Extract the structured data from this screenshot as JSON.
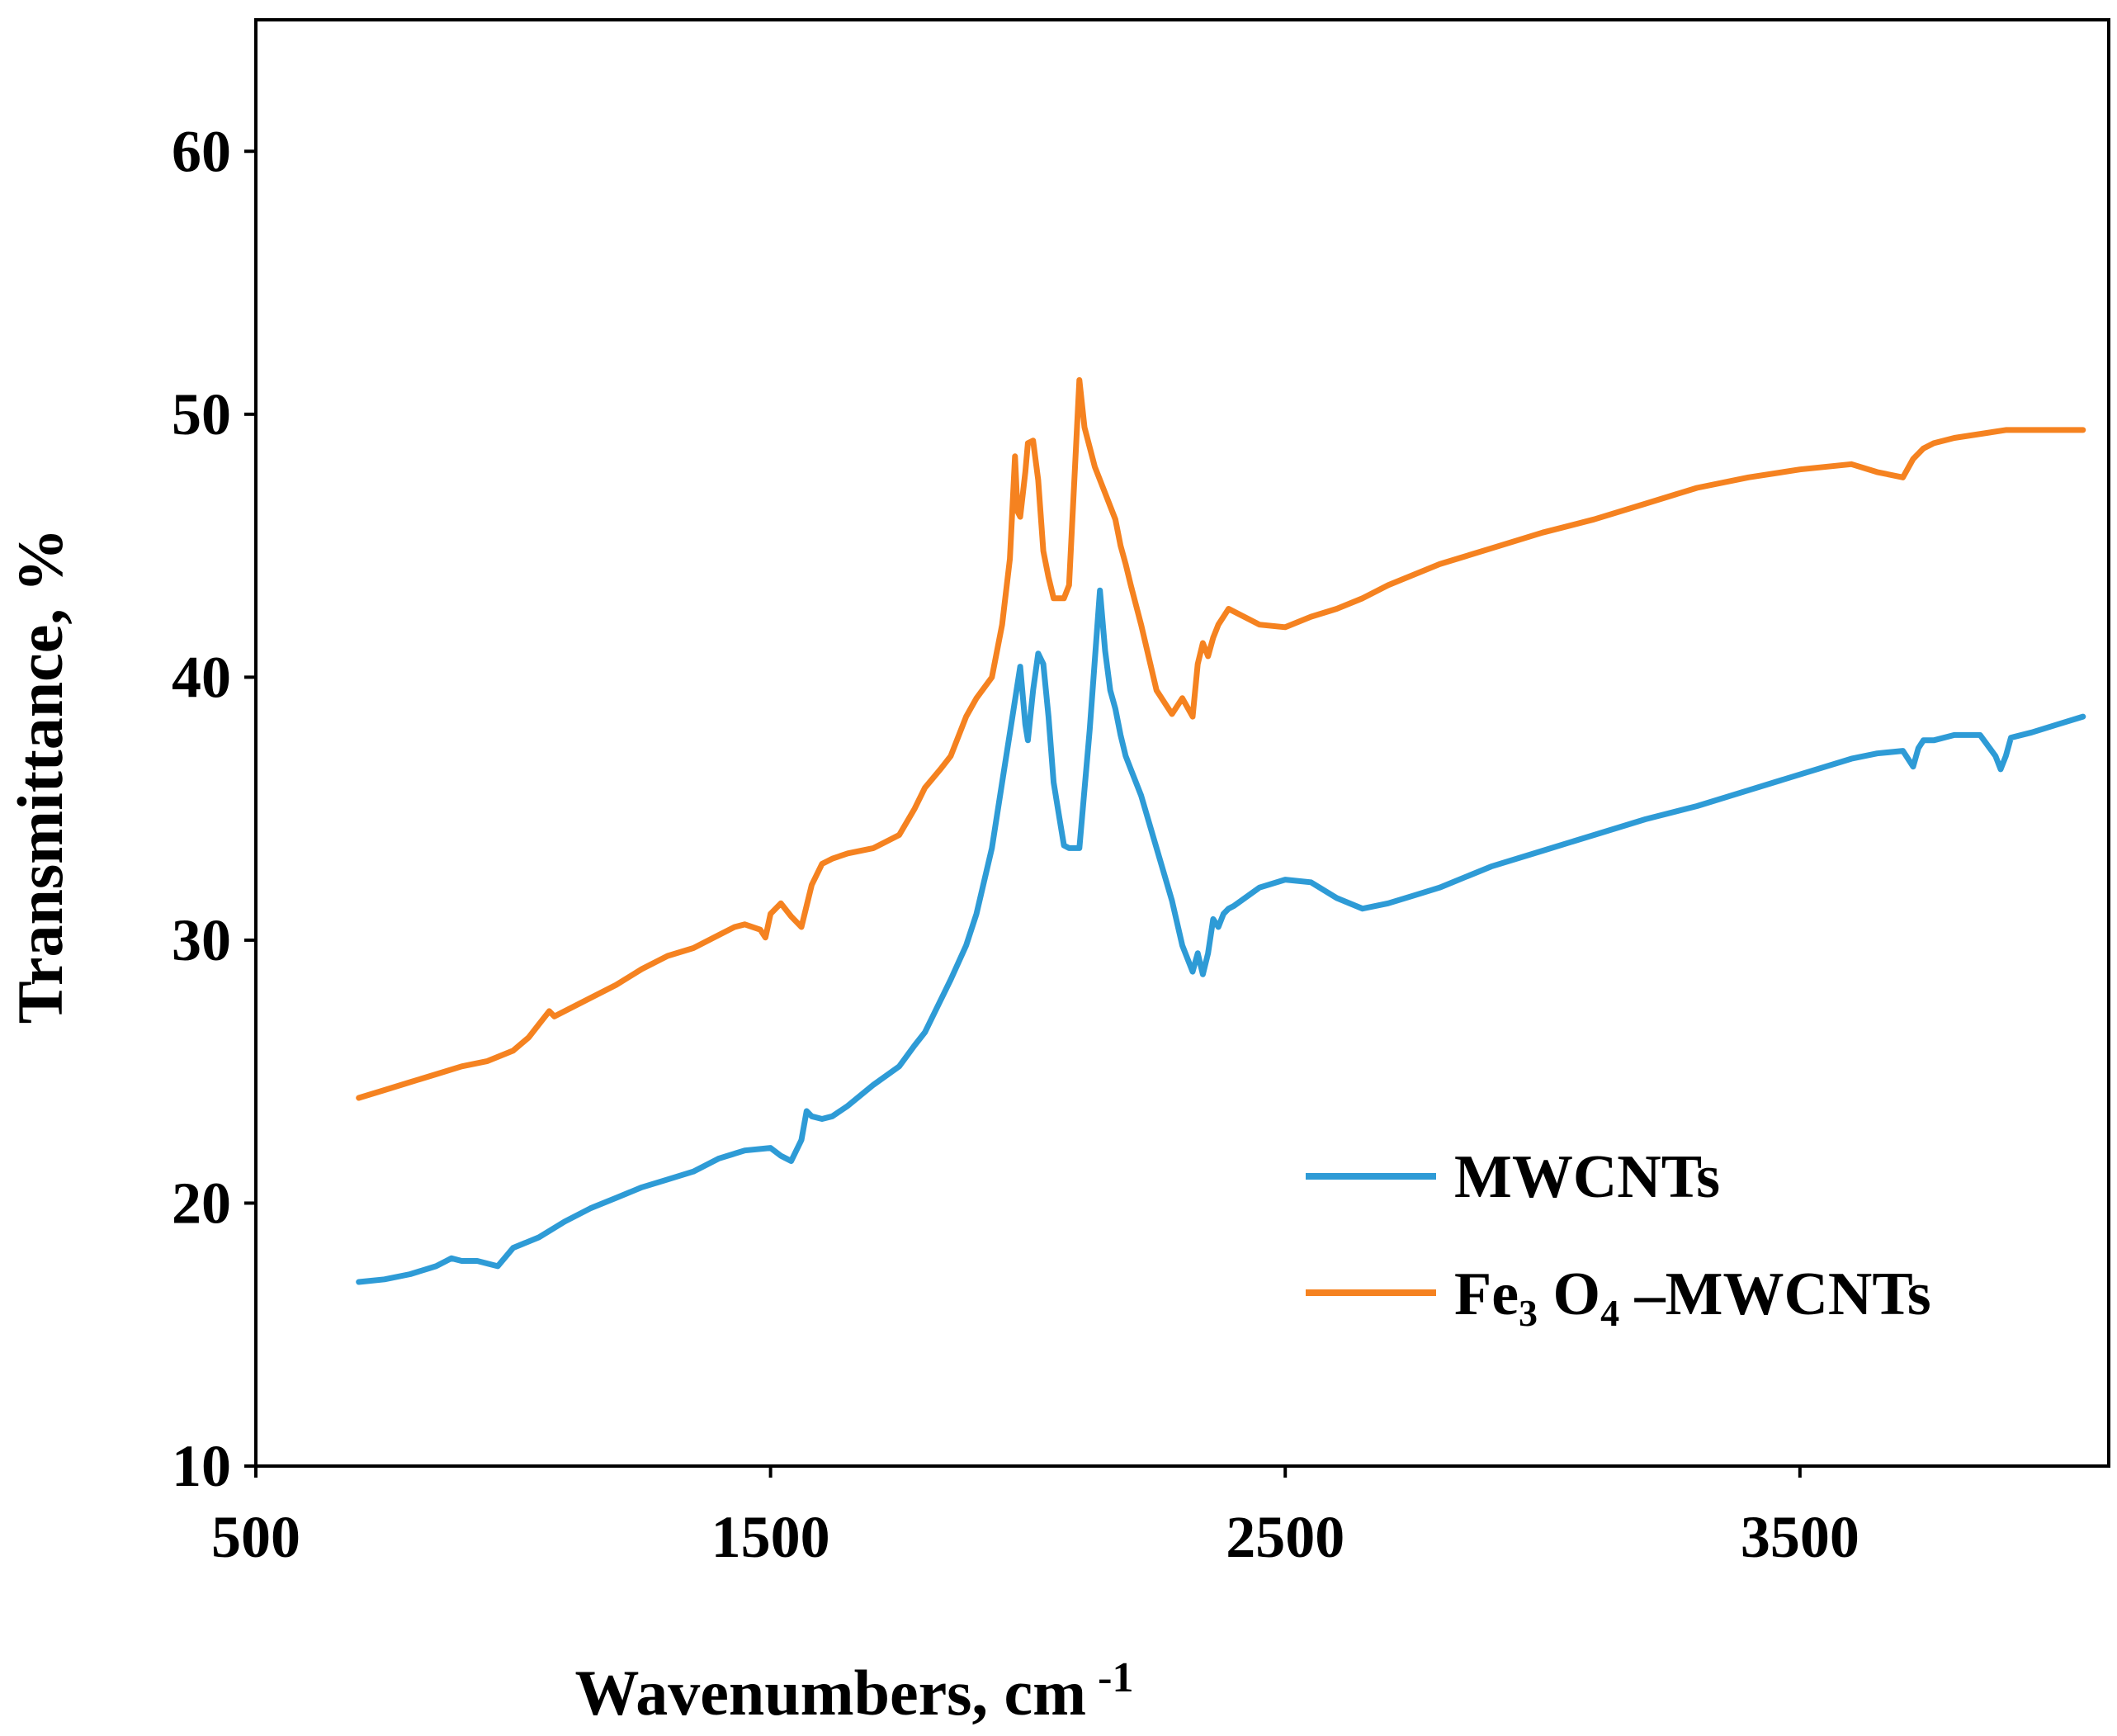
{
  "chart_data": {
    "type": "line",
    "title": "",
    "xlabel": "Wavenumbers, cm",
    "xlabel_sup": "-1",
    "ylabel": "Transmittance, %",
    "xlim": [
      500,
      4100
    ],
    "ylim": [
      10,
      65
    ],
    "xticks": [
      500,
      1500,
      2500,
      3500
    ],
    "yticks": [
      10,
      20,
      30,
      40,
      50,
      60
    ],
    "grid": false,
    "legend_position": "bottom-right",
    "series": [
      {
        "name": "MWCNTs",
        "color": "#2e9bd6",
        "x": [
          700,
          750,
          800,
          850,
          880,
          900,
          930,
          970,
          1000,
          1050,
          1100,
          1150,
          1200,
          1250,
          1300,
          1350,
          1400,
          1450,
          1500,
          1520,
          1540,
          1560,
          1570,
          1580,
          1600,
          1620,
          1650,
          1700,
          1750,
          1780,
          1800,
          1850,
          1880,
          1900,
          1930,
          1950,
          1970,
          1985,
          1995,
          2000,
          2010,
          2020,
          2030,
          2040,
          2050,
          2060,
          2070,
          2080,
          2100,
          2120,
          2140,
          2150,
          2160,
          2170,
          2180,
          2190,
          2200,
          2220,
          2250,
          2280,
          2300,
          2320,
          2330,
          2340,
          2350,
          2360,
          2370,
          2380,
          2390,
          2400,
          2450,
          2500,
          2550,
          2600,
          2650,
          2700,
          2750,
          2800,
          2900,
          3000,
          3100,
          3200,
          3300,
          3400,
          3500,
          3600,
          3650,
          3700,
          3720,
          3730,
          3740,
          3760,
          3800,
          3850,
          3880,
          3890,
          3900,
          3910,
          3950,
          4000,
          4050
        ],
        "values": [
          17.0,
          17.1,
          17.3,
          17.6,
          17.9,
          17.8,
          17.8,
          17.6,
          18.3,
          18.7,
          19.3,
          19.8,
          20.2,
          20.6,
          20.9,
          21.2,
          21.7,
          22.0,
          22.1,
          21.8,
          21.6,
          22.4,
          23.5,
          23.3,
          23.2,
          23.3,
          23.7,
          24.5,
          25.2,
          26.0,
          26.5,
          28.5,
          29.8,
          31.0,
          33.5,
          36.0,
          38.5,
          40.4,
          38.2,
          37.6,
          39.5,
          40.9,
          40.5,
          38.5,
          36.0,
          34.8,
          33.6,
          33.5,
          33.5,
          38.0,
          43.3,
          41.0,
          39.5,
          38.8,
          37.8,
          37.0,
          36.5,
          35.5,
          33.5,
          31.5,
          29.8,
          28.8,
          29.5,
          28.7,
          29.5,
          30.8,
          30.5,
          31.0,
          31.2,
          31.3,
          32.0,
          32.3,
          32.2,
          31.6,
          31.2,
          31.4,
          31.7,
          32.0,
          32.8,
          33.4,
          34.0,
          34.6,
          35.1,
          35.7,
          36.3,
          36.9,
          37.1,
          37.2,
          36.6,
          37.3,
          37.6,
          37.6,
          37.8,
          37.8,
          37.0,
          36.5,
          37.0,
          37.7,
          37.9,
          38.2,
          38.5
        ],
        "legend_label": "MWCNTs"
      },
      {
        "name": "Fe3O4-MWCNTs",
        "color": "#f58220",
        "x": [
          700,
          750,
          800,
          850,
          900,
          950,
          1000,
          1030,
          1050,
          1070,
          1080,
          1100,
          1150,
          1200,
          1250,
          1300,
          1350,
          1400,
          1430,
          1450,
          1480,
          1490,
          1500,
          1520,
          1540,
          1560,
          1580,
          1600,
          1620,
          1650,
          1700,
          1750,
          1780,
          1800,
          1830,
          1850,
          1880,
          1900,
          1930,
          1950,
          1965,
          1975,
          1980,
          1985,
          1995,
          2000,
          2010,
          2020,
          2030,
          2040,
          2050,
          2060,
          2070,
          2080,
          2100,
          2110,
          2130,
          2150,
          2160,
          2170,
          2180,
          2190,
          2200,
          2220,
          2250,
          2280,
          2300,
          2320,
          2330,
          2340,
          2350,
          2360,
          2370,
          2380,
          2390,
          2400,
          2450,
          2500,
          2550,
          2600,
          2650,
          2700,
          2750,
          2800,
          2900,
          3000,
          3100,
          3200,
          3300,
          3400,
          3500,
          3600,
          3650,
          3700,
          3720,
          3730,
          3740,
          3760,
          3800,
          3900,
          3950,
          4000,
          4050
        ],
        "values": [
          24.0,
          24.3,
          24.6,
          24.9,
          25.2,
          25.4,
          25.8,
          26.3,
          26.8,
          27.3,
          27.1,
          27.3,
          27.8,
          28.3,
          28.9,
          29.4,
          29.7,
          30.2,
          30.5,
          30.6,
          30.4,
          30.1,
          31.0,
          31.4,
          30.9,
          30.5,
          32.1,
          32.9,
          33.1,
          33.3,
          33.5,
          34.0,
          35.0,
          35.8,
          36.5,
          37.0,
          38.5,
          39.2,
          40.0,
          42.0,
          44.5,
          48.4,
          46.3,
          46.1,
          47.8,
          48.9,
          49.0,
          47.5,
          44.8,
          43.8,
          43.0,
          43.0,
          43.0,
          43.5,
          51.3,
          49.5,
          48.0,
          47.0,
          46.5,
          46.0,
          45.0,
          44.3,
          43.5,
          42.0,
          39.5,
          38.6,
          39.2,
          38.5,
          40.5,
          41.3,
          40.8,
          41.5,
          42.0,
          42.3,
          42.6,
          42.5,
          42.0,
          41.9,
          42.3,
          42.6,
          43.0,
          43.5,
          43.9,
          44.3,
          44.9,
          45.5,
          46.0,
          46.6,
          47.2,
          47.6,
          47.9,
          48.1,
          47.8,
          47.6,
          48.3,
          48.5,
          48.7,
          48.9,
          49.1,
          49.4,
          49.4,
          49.4,
          49.4
        ],
        "legend_label_parts": [
          "Fe",
          "3",
          " O",
          "4",
          " –MWCNTs"
        ]
      }
    ]
  }
}
